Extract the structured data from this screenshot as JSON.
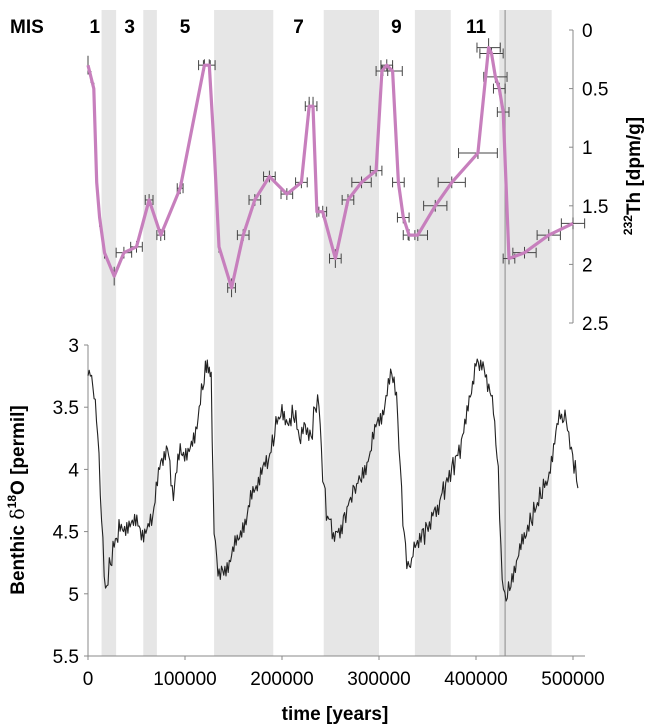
{
  "chart_data": [
    {
      "type": "line",
      "ylabel_main": "Th [dpm/g]",
      "ylabel_sup": "232",
      "ylim": [
        0,
        2.5
      ],
      "y_inverted": true,
      "y_ticks": [
        "0",
        "0.5",
        "1",
        "1.5",
        "2",
        "2.5"
      ],
      "mis_label": "MIS",
      "mis_stages": [
        "1",
        "3",
        "5",
        "7",
        "9",
        "11"
      ],
      "line_color": "#c77fbd",
      "series": [
        {
          "x": [
            0,
            3000,
            6000,
            9000,
            12000,
            17000,
            27000,
            37000,
            50000,
            63000,
            75000,
            95000,
            120000,
            125000,
            130000,
            135000,
            148000,
            160000,
            172000,
            187000,
            205000,
            220000,
            228000,
            232000,
            236000,
            242000,
            255000,
            268000,
            282000,
            297000,
            303000,
            308000,
            314000,
            320000,
            325000,
            331000,
            340000,
            358000,
            375000,
            402000,
            413000,
            416000,
            420000,
            424000,
            428000,
            434000,
            450000,
            475000,
            500000
          ],
          "y": [
            0.3,
            0.4,
            0.5,
            1.3,
            1.6,
            1.9,
            2.1,
            1.9,
            1.85,
            1.45,
            1.75,
            1.35,
            0.3,
            0.3,
            1.0,
            1.85,
            2.2,
            1.75,
            1.45,
            1.25,
            1.4,
            1.3,
            0.65,
            0.65,
            1.55,
            1.55,
            1.95,
            1.45,
            1.3,
            1.2,
            0.35,
            0.3,
            0.35,
            1.3,
            1.6,
            1.75,
            1.75,
            1.5,
            1.3,
            1.05,
            0.15,
            0.2,
            0.4,
            0.5,
            0.7,
            1.95,
            1.9,
            1.75,
            1.65
          ],
          "xerr": [
            0,
            0,
            0,
            0,
            0,
            0,
            0,
            8000,
            6000,
            4000,
            4000,
            3000,
            6000,
            6000,
            0,
            0,
            4000,
            6000,
            6000,
            6000,
            6000,
            6000,
            4000,
            4000,
            0,
            4000,
            6000,
            6000,
            10000,
            6000,
            6000,
            6000,
            10000,
            6000,
            6000,
            6000,
            10000,
            12000,
            14000,
            20000,
            12000,
            12000,
            12000,
            6000,
            6000,
            6000,
            12000,
            12000,
            12000
          ],
          "yerr": [
            0.08,
            0.05,
            0.05,
            0.05,
            0.08,
            0.05,
            0.08,
            0.05,
            0.05,
            0.05,
            0.05,
            0.05,
            0.05,
            0.05,
            0.05,
            0.05,
            0.08,
            0.05,
            0.05,
            0.05,
            0.05,
            0.05,
            0.08,
            0.08,
            0.05,
            0.05,
            0.08,
            0.05,
            0.05,
            0.05,
            0.05,
            0.05,
            0.05,
            0.05,
            0.05,
            0.05,
            0.05,
            0.05,
            0.05,
            0.05,
            0.08,
            0.05,
            0.05,
            0.05,
            0.05,
            0.05,
            0.05,
            0.05,
            0.05
          ]
        }
      ]
    },
    {
      "type": "line",
      "ylabel_pre": "Benthic ",
      "ylabel_delta": "δ",
      "ylabel_sup": "18",
      "ylabel_post": "O [permil]",
      "xlabel": "time [years]",
      "xlim": [
        0,
        500000
      ],
      "ylim": [
        3,
        5.5
      ],
      "y_inverted": true,
      "x_ticks": [
        "0",
        "100000",
        "200000",
        "300000",
        "400000",
        "500000"
      ],
      "y_ticks": [
        "3",
        "3.5",
        "4",
        "4.5",
        "5",
        "5.5"
      ],
      "line_color": "#222222",
      "series": [
        {
          "x": [
            0,
            5000,
            10000,
            14000,
            18000,
            22000,
            27000,
            32000,
            40000,
            48000,
            55000,
            62000,
            68000,
            75000,
            82000,
            88000,
            95000,
            102000,
            110000,
            117000,
            121000,
            124000,
            127000,
            130000,
            134000,
            140000,
            148000,
            155000,
            163000,
            170000,
            178000,
            185000,
            190000,
            195000,
            200000,
            208000,
            213000,
            218000,
            224000,
            230000,
            234000,
            238000,
            242000,
            247000,
            253000,
            262000,
            272000,
            282000,
            291000,
            298000,
            306000,
            312000,
            318000,
            322000,
            326000,
            330000,
            335000,
            342000,
            352000,
            365000,
            375000,
            385000,
            393000,
            400000,
            406000,
            412000,
            418000,
            423000,
            427000,
            431000,
            436000,
            444000,
            452000,
            462000,
            472000,
            480000,
            487000,
            493000,
            497000,
            501000,
            505000
          ],
          "y": [
            3.2,
            3.3,
            3.7,
            4.4,
            5.0,
            4.8,
            4.6,
            4.5,
            4.45,
            4.4,
            4.5,
            4.5,
            4.3,
            3.9,
            3.85,
            4.2,
            3.8,
            3.9,
            3.75,
            3.4,
            3.2,
            3.15,
            3.3,
            4.5,
            4.8,
            4.85,
            4.65,
            4.55,
            4.4,
            4.2,
            4.0,
            3.95,
            3.8,
            3.6,
            3.55,
            3.6,
            3.55,
            3.75,
            3.65,
            3.75,
            3.5,
            3.45,
            4.05,
            4.4,
            4.5,
            4.45,
            4.2,
            4.05,
            3.9,
            3.6,
            3.5,
            3.2,
            3.4,
            4.0,
            4.55,
            4.8,
            4.7,
            4.55,
            4.45,
            4.2,
            4.0,
            3.8,
            3.45,
            3.15,
            3.15,
            3.3,
            3.5,
            4.05,
            4.9,
            5.05,
            4.9,
            4.7,
            4.5,
            4.3,
            4.1,
            3.85,
            3.55,
            3.6,
            3.8,
            3.95,
            4.15
          ]
        }
      ]
    }
  ],
  "shaded_intervals": [
    [
      14000,
      29000
    ],
    [
      57000,
      71000
    ],
    [
      130000,
      191000
    ],
    [
      243000,
      300000
    ],
    [
      337000,
      374000
    ],
    [
      424000,
      478000
    ]
  ],
  "shade_color": "#e6e6e6",
  "vertical_line_x": 430000
}
